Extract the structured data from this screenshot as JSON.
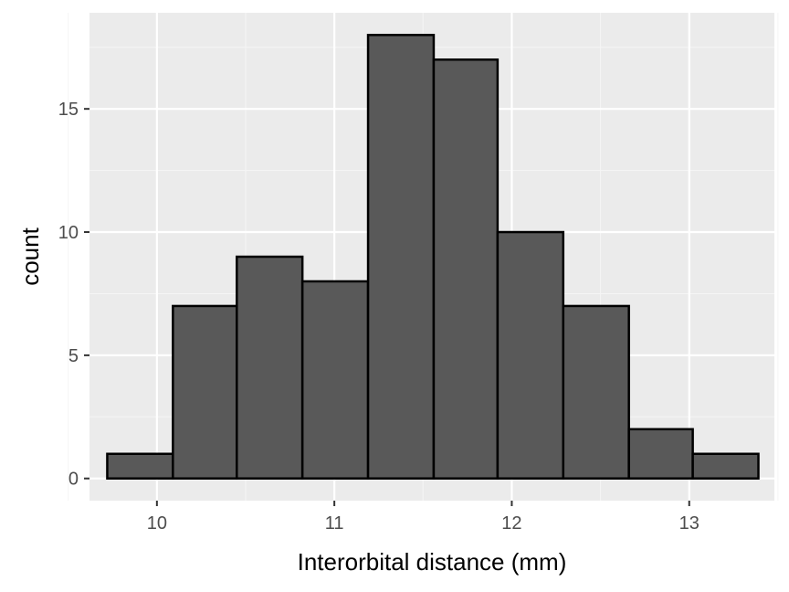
{
  "chart_data": {
    "type": "bar",
    "xlabel": "Interorbital distance (mm)",
    "ylabel": "count",
    "xlim": [
      9.62,
      13.48
    ],
    "ylim": [
      -0.9,
      18.9
    ],
    "x_ticks": [
      10,
      11,
      12,
      13
    ],
    "x_tick_labels": [
      "10",
      "11",
      "12",
      "13"
    ],
    "y_ticks": [
      0,
      5,
      10,
      15
    ],
    "y_tick_labels": [
      "0",
      "5",
      "10",
      "15"
    ],
    "bins": [
      {
        "x0": 9.72,
        "x1": 10.09,
        "count": 1
      },
      {
        "x0": 10.09,
        "x1": 10.45,
        "count": 7
      },
      {
        "x0": 10.45,
        "x1": 10.82,
        "count": 9
      },
      {
        "x0": 10.82,
        "x1": 11.19,
        "count": 8
      },
      {
        "x0": 11.19,
        "x1": 11.56,
        "count": 18
      },
      {
        "x0": 11.56,
        "x1": 11.92,
        "count": 17
      },
      {
        "x0": 11.92,
        "x1": 12.29,
        "count": 10
      },
      {
        "x0": 12.29,
        "x1": 12.66,
        "count": 7
      },
      {
        "x0": 12.66,
        "x1": 13.02,
        "count": 2
      },
      {
        "x0": 13.02,
        "x1": 13.39,
        "count": 1
      }
    ],
    "grid": true,
    "colors": {
      "panel_background": "#ebebeb",
      "grid_major": "#ffffff",
      "grid_minor": "#f5f5f5",
      "bar_fill": "#595959",
      "bar_stroke": "#000000",
      "tick_text": "#4d4d4d",
      "tick_mark": "#333333"
    }
  }
}
